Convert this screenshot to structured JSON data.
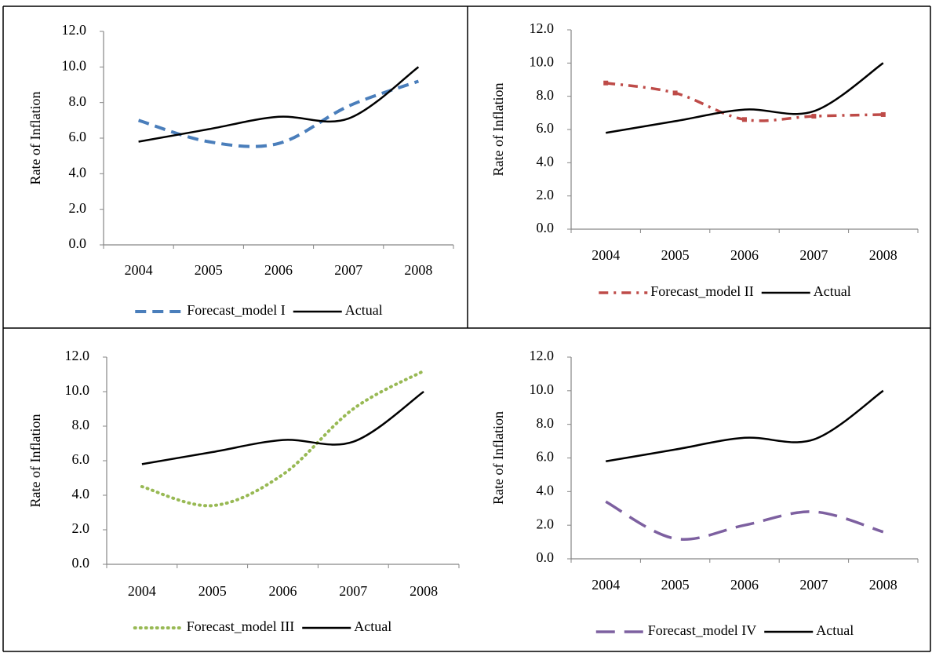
{
  "chart_data": [
    {
      "type": "line",
      "categories": [
        "2004",
        "2005",
        "2006",
        "2007",
        "2008"
      ],
      "y_label": "Rate of Inflation",
      "ylim": [
        0,
        12
      ],
      "yticks": [
        {
          "value": 0,
          "label": "0.0"
        },
        {
          "value": 2,
          "label": "2.0"
        },
        {
          "value": 4,
          "label": "4.0"
        },
        {
          "value": 6,
          "label": "6.0"
        },
        {
          "value": 8,
          "label": "8.0"
        },
        {
          "value": 10,
          "label": "10.0"
        },
        {
          "value": 12,
          "label": "12.0"
        }
      ],
      "legend": "bottom",
      "series": [
        {
          "name": "Forecast_model I",
          "color": "#4a7ebb",
          "style": "dashed",
          "values": [
            7.0,
            5.8,
            5.7,
            7.8,
            9.2
          ]
        },
        {
          "name": "Actual",
          "color": "#000000",
          "style": "solid",
          "values": [
            5.8,
            6.5,
            7.2,
            7.1,
            10.0
          ]
        }
      ]
    },
    {
      "type": "line",
      "categories": [
        "2004",
        "2005",
        "2006",
        "2007",
        "2008"
      ],
      "y_label": "Rate of Inflation",
      "ylim": [
        0,
        12
      ],
      "yticks": [
        {
          "value": 0,
          "label": "0.0"
        },
        {
          "value": 2,
          "label": "2.0"
        },
        {
          "value": 4,
          "label": "4.0"
        },
        {
          "value": 6,
          "label": "6.0"
        },
        {
          "value": 8,
          "label": "8.0"
        },
        {
          "value": 10,
          "label": "10.0"
        },
        {
          "value": 12,
          "label": "12.0"
        }
      ],
      "legend": "bottom",
      "series": [
        {
          "name": "Forecast_model II",
          "color": "#be4b48",
          "style": "dashdot",
          "values": [
            8.8,
            8.2,
            6.6,
            6.8,
            6.9
          ]
        },
        {
          "name": "Actual",
          "color": "#000000",
          "style": "solid",
          "values": [
            5.8,
            6.5,
            7.2,
            7.1,
            10.0
          ]
        }
      ]
    },
    {
      "type": "line",
      "categories": [
        "2004",
        "2005",
        "2006",
        "2007",
        "2008"
      ],
      "y_label": "Rate of Inflation",
      "ylim": [
        0,
        12
      ],
      "yticks": [
        {
          "value": 0,
          "label": "0.0"
        },
        {
          "value": 2,
          "label": "2.0"
        },
        {
          "value": 4,
          "label": "4.0"
        },
        {
          "value": 6,
          "label": "6.0"
        },
        {
          "value": 8,
          "label": "8.0"
        },
        {
          "value": 10,
          "label": "10.0"
        },
        {
          "value": 12,
          "label": "12.0"
        }
      ],
      "legend": "bottom",
      "series": [
        {
          "name": "Forecast_model III",
          "color": "#98b954",
          "style": "dotted",
          "values": [
            4.5,
            3.4,
            5.2,
            9.0,
            11.2
          ]
        },
        {
          "name": "Actual",
          "color": "#000000",
          "style": "solid",
          "values": [
            5.8,
            6.5,
            7.2,
            7.1,
            10.0
          ]
        }
      ]
    },
    {
      "type": "line",
      "categories": [
        "2004",
        "2005",
        "2006",
        "2007",
        "2008"
      ],
      "y_label": "Rate of Inflation",
      "ylim": [
        0,
        12
      ],
      "yticks": [
        {
          "value": 0,
          "label": "0.0"
        },
        {
          "value": 2,
          "label": "2.0"
        },
        {
          "value": 4,
          "label": "4.0"
        },
        {
          "value": 6,
          "label": "6.0"
        },
        {
          "value": 8,
          "label": "8.0"
        },
        {
          "value": 10,
          "label": "10.0"
        },
        {
          "value": 12,
          "label": "12.0"
        }
      ],
      "legend": "bottom",
      "series": [
        {
          "name": "Forecast_model IV",
          "color": "#7d60a0",
          "style": "longdash",
          "values": [
            3.4,
            1.2,
            2.0,
            2.8,
            1.6
          ]
        },
        {
          "name": "Actual",
          "color": "#000000",
          "style": "solid",
          "values": [
            5.8,
            6.5,
            7.2,
            7.1,
            10.0
          ]
        }
      ]
    }
  ]
}
